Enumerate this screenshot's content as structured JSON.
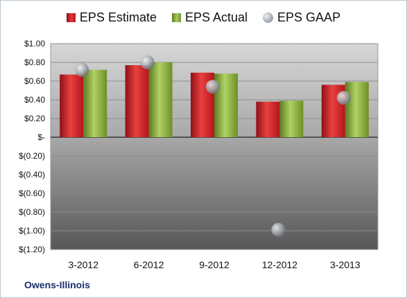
{
  "company": "Owens-Illinois",
  "colors": {
    "estimate": "#c8191f",
    "actual": "#8fb246",
    "gaap": "#9aa0a6",
    "plot_bg_top": "#d2d2d2",
    "plot_bg_bottom": "#5a5a5a",
    "frame_bg": "#ffffff"
  },
  "chart_data": {
    "type": "bar",
    "categories": [
      "3-2012",
      "6-2012",
      "9-2012",
      "12-2012",
      "3-2013"
    ],
    "series": [
      {
        "name": "EPS Estimate",
        "kind": "bar",
        "color": "#c8191f",
        "values": [
          0.67,
          0.77,
          0.69,
          0.38,
          0.56
        ]
      },
      {
        "name": "EPS Actual",
        "kind": "bar",
        "color": "#8fb246",
        "values": [
          0.72,
          0.8,
          0.68,
          0.39,
          0.59
        ]
      },
      {
        "name": "EPS GAAP",
        "kind": "marker",
        "color": "#9aa0a6",
        "values": [
          0.72,
          0.8,
          0.54,
          -0.99,
          0.42
        ]
      }
    ],
    "y_ticks": [
      {
        "value": 1.0,
        "label": "$1.00"
      },
      {
        "value": 0.8,
        "label": "$0.80"
      },
      {
        "value": 0.6,
        "label": "$0.60"
      },
      {
        "value": 0.4,
        "label": "$0.40"
      },
      {
        "value": 0.2,
        "label": "$0.20"
      },
      {
        "value": 0.0,
        "label": "$-"
      },
      {
        "value": -0.2,
        "label": "$(0.20)"
      },
      {
        "value": -0.4,
        "label": "$(0.40)"
      },
      {
        "value": -0.6,
        "label": "$(0.60)"
      },
      {
        "value": -0.8,
        "label": "$(0.80)"
      },
      {
        "value": -1.0,
        "label": "$(1.00)"
      },
      {
        "value": -1.2,
        "label": "$(1.20)"
      }
    ],
    "ylim": [
      -1.2,
      1.0
    ],
    "grid": true,
    "legend_position": "top",
    "title": "",
    "xlabel": "",
    "ylabel": ""
  }
}
